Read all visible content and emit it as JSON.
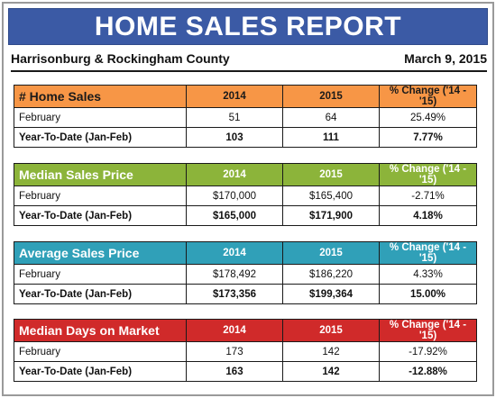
{
  "banner_title": "HOME SALES REPORT",
  "location": "Harrisonburg & Rockingham County",
  "date": "March 9, 2015",
  "colors": {
    "banner": "#3b5aa5",
    "home_sales": "#f79646",
    "median_price": "#8cb43a",
    "average_price": "#30a0b8",
    "days_on_market": "#d02a2a"
  },
  "tables": [
    {
      "title": "# Home Sales",
      "col_2014": "2014",
      "col_2015": "2015",
      "col_change": "% Change ('14 - '15)",
      "rows": [
        {
          "label": "February",
          "v2014": "51",
          "v2015": "64",
          "change": "25.49%"
        },
        {
          "label": "Year-To-Date (Jan-Feb)",
          "v2014": "103",
          "v2015": "111",
          "change": "7.77%"
        }
      ]
    },
    {
      "title": "Median Sales Price",
      "col_2014": "2014",
      "col_2015": "2015",
      "col_change": "% Change ('14 - '15)",
      "rows": [
        {
          "label": "February",
          "v2014": "$170,000",
          "v2015": "$165,400",
          "change": "-2.71%"
        },
        {
          "label": "Year-To-Date (Jan-Feb)",
          "v2014": "$165,000",
          "v2015": "$171,900",
          "change": "4.18%"
        }
      ]
    },
    {
      "title": "Average Sales Price",
      "col_2014": "2014",
      "col_2015": "2015",
      "col_change": "% Change ('14 - '15)",
      "rows": [
        {
          "label": "February",
          "v2014": "$178,492",
          "v2015": "$186,220",
          "change": "4.33%"
        },
        {
          "label": "Year-To-Date (Jan-Feb)",
          "v2014": "$173,356",
          "v2015": "$199,364",
          "change": "15.00%"
        }
      ]
    },
    {
      "title": "Median Days on Market",
      "col_2014": "2014",
      "col_2015": "2015",
      "col_change": "% Change ('14 - '15)",
      "rows": [
        {
          "label": "February",
          "v2014": "173",
          "v2015": "142",
          "change": "-17.92%"
        },
        {
          "label": "Year-To-Date (Jan-Feb)",
          "v2014": "163",
          "v2015": "142",
          "change": "-12.88%"
        }
      ]
    }
  ]
}
